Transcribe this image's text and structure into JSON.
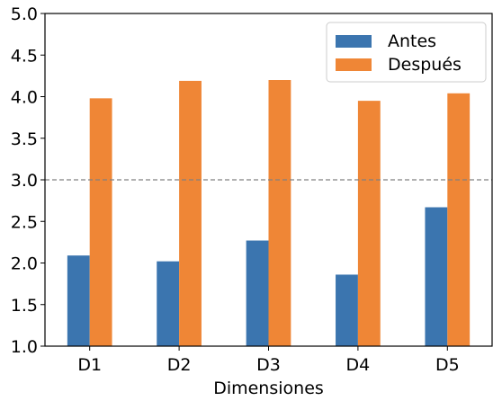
{
  "chart_data": {
    "type": "bar",
    "title": "",
    "xlabel": "Dimensiones",
    "ylabel": "",
    "categories": [
      "D1",
      "D2",
      "D3",
      "D4",
      "D5"
    ],
    "series": [
      {
        "name": "Antes",
        "color": "#3b75af",
        "values": [
          2.09,
          2.02,
          2.27,
          1.86,
          2.67
        ]
      },
      {
        "name": "Después",
        "color": "#ef8636",
        "values": [
          3.98,
          4.19,
          4.2,
          3.95,
          4.04
        ]
      }
    ],
    "ylim": [
      1.0,
      5.0
    ],
    "yticks": [
      "1.0",
      "1.5",
      "2.0",
      "2.5",
      "3.0",
      "3.5",
      "4.0",
      "4.5",
      "5.0"
    ],
    "reference_line": {
      "y": 3.0,
      "style": "dashed",
      "color": "#808080"
    },
    "grid": false,
    "legend": "top-right"
  }
}
